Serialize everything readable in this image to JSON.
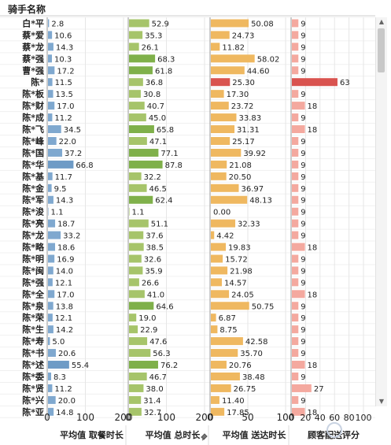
{
  "header": {
    "title": "骑手名称"
  },
  "icons": {
    "pin": "pin-icon",
    "scroll_up": "scroll-up-icon",
    "scroll_down": "scroll-down-icon",
    "watermark": "watermark-logo-icon"
  },
  "chart_data": {
    "type": "bar",
    "orientation": "horizontal",
    "categories": [
      "白*平",
      "蔡*爱",
      "蔡*龙",
      "蔡*强",
      "曹*强",
      "陈*",
      "陈*板",
      "陈*财",
      "陈*成",
      "陈*飞",
      "陈*峰",
      "陈*国",
      "陈*华",
      "陈*基",
      "陈*金",
      "陈*军",
      "陈*浚",
      "陈*亮",
      "陈*龙",
      "陈*略",
      "陈*明",
      "陈*闽",
      "陈*强",
      "陈*全",
      "陈*泉",
      "陈*荣",
      "陈*生",
      "陈*寿",
      "陈*书",
      "陈*述",
      "陈*委",
      "陈*贤",
      "陈*兴",
      "陈*亚"
    ],
    "series": [
      {
        "name": "平均值 取餐时长",
        "color": "#7fa8cf",
        "ticks": [
          "0",
          "100",
          "200"
        ],
        "xlim": [
          0,
          200
        ],
        "values": [
          2.8,
          10.6,
          14.3,
          10.3,
          17.2,
          11.5,
          13.5,
          17.0,
          11.2,
          34.5,
          22.0,
          37.2,
          66.8,
          11.7,
          9.5,
          14.3,
          1.1,
          18.7,
          33.2,
          18.6,
          16.9,
          14.0,
          12.1,
          17.0,
          13.8,
          12.1,
          14.2,
          5.0,
          20.6,
          55.4,
          8.3,
          11.2,
          20.0,
          14.8
        ],
        "labels": [
          "2.8",
          "10.6",
          "14.3",
          "10.3",
          "17.2",
          "11.5",
          "13.5",
          "17.0",
          "11.2",
          "34.5",
          "22.0",
          "37.2",
          "66.8",
          "11.7",
          "9.5",
          "14.3",
          "1.1",
          "18.7",
          "33.2",
          "18.6",
          "16.9",
          "14.0",
          "12.1",
          "17.0",
          "13.8",
          "12.1",
          "14.2",
          "5.0",
          "20.6",
          "55.4",
          "8.3",
          "11.2",
          "20.0",
          "14.8"
        ]
      },
      {
        "name": "平均值 总时长",
        "color": "#a6c46a",
        "ticks": [
          "0",
          "100",
          "200"
        ],
        "xlim": [
          0,
          200
        ],
        "values": [
          52.9,
          35.3,
          26.1,
          68.3,
          61.8,
          36.8,
          30.8,
          40.7,
          45.0,
          65.8,
          47.1,
          77.1,
          87.8,
          32.2,
          46.5,
          62.4,
          1.1,
          51.1,
          37.6,
          38.5,
          32.6,
          35.9,
          26.6,
          41.0,
          64.6,
          19.0,
          22.9,
          47.6,
          56.3,
          76.2,
          46.7,
          38.0,
          31.4,
          32.7
        ],
        "labels": [
          "52.9",
          "35.3",
          "26.1",
          "68.3",
          "61.8",
          "36.8",
          "30.8",
          "40.7",
          "45.0",
          "65.8",
          "47.1",
          "77.1",
          "87.8",
          "32.2",
          "46.5",
          "62.4",
          "1.1",
          "51.1",
          "37.6",
          "38.5",
          "32.6",
          "35.9",
          "26.6",
          "41.0",
          "64.6",
          "19.0",
          "22.9",
          "47.6",
          "56.3",
          "76.2",
          "46.7",
          "38.0",
          "31.4",
          "32.7"
        ]
      },
      {
        "name": "平均值 送达时长",
        "color": "#efb860",
        "ticks": [
          "0",
          "50",
          "100"
        ],
        "xlim": [
          0,
          100
        ],
        "values": [
          50.08,
          24.73,
          11.82,
          58.02,
          44.6,
          25.3,
          17.3,
          23.72,
          33.83,
          31.31,
          25.17,
          39.92,
          21.08,
          20.5,
          36.97,
          48.13,
          0.0,
          32.33,
          4.42,
          19.83,
          15.72,
          21.98,
          14.57,
          24.05,
          50.75,
          6.87,
          8.75,
          42.58,
          35.7,
          20.76,
          38.48,
          26.75,
          11.4,
          17.85
        ],
        "labels": [
          "50.08",
          "24.73",
          "11.82",
          "58.02",
          "44.60",
          "25.30",
          "17.30",
          "23.72",
          "33.83",
          "31.31",
          "25.17",
          "39.92",
          "21.08",
          "20.50",
          "36.97",
          "48.13",
          "0.00",
          "32.33",
          "4.42",
          "19.83",
          "15.72",
          "21.98",
          "14.57",
          "24.05",
          "50.75",
          "6.87",
          "8.75",
          "42.58",
          "35.70",
          "20.76",
          "38.48",
          "26.75",
          "11.40",
          "17.85"
        ]
      },
      {
        "name": "顾客配送评分",
        "color": "#f4a99f",
        "ticks": [
          "0",
          "20",
          "40",
          "60",
          "80",
          "100"
        ],
        "xlim": [
          0,
          100
        ],
        "values": [
          9,
          9,
          9,
          9,
          9,
          63,
          9,
          18,
          9,
          18,
          9,
          9,
          9,
          9,
          9,
          9,
          9,
          9,
          9,
          18,
          9,
          9,
          9,
          18,
          9,
          9,
          9,
          9,
          9,
          18,
          9,
          27,
          9,
          18
        ],
        "labels": [
          "9",
          "9",
          "9",
          "9",
          "9",
          "63",
          "9",
          "18",
          "9",
          "18",
          "9",
          "9",
          "9",
          "9",
          "9",
          "9",
          "9",
          "9",
          "9",
          "18",
          "9",
          "9",
          "9",
          "18",
          "9",
          "9",
          "9",
          "9",
          "9",
          "18",
          "9",
          "27",
          "9",
          "18"
        ]
      }
    ],
    "grid": true,
    "legend": "none"
  }
}
